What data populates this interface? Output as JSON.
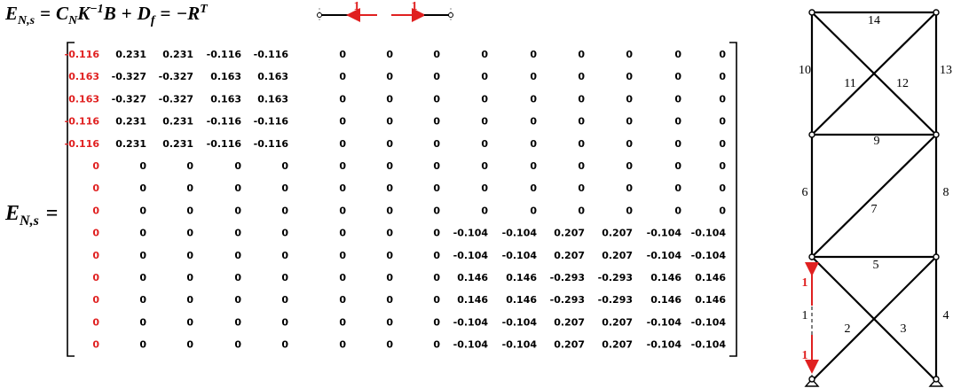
{
  "equation": {
    "lhs": "E",
    "lhs_sub": "N,s",
    "eq1": "=",
    "c": "C",
    "c_sub": "N",
    "k": "K",
    "k_sup": "−1",
    "b": "B",
    "plus": "+",
    "d": "D",
    "d_sub": "f",
    "eq2": "=",
    "r": "−R",
    "r_sup": "T"
  },
  "bar_diagram": {
    "labels": [
      "1",
      "1"
    ]
  },
  "matrix_label": {
    "main": "E",
    "sub": "N,s",
    "eq": "="
  },
  "matrix": {
    "rows": [
      [
        "-0.116",
        "0.231",
        "0.231",
        "-0.116",
        "-0.116",
        "0",
        "0",
        "0",
        "0",
        "0",
        "0",
        "0",
        "0",
        "0"
      ],
      [
        "0.163",
        "-0.327",
        "-0.327",
        "0.163",
        "0.163",
        "0",
        "0",
        "0",
        "0",
        "0",
        "0",
        "0",
        "0",
        "0"
      ],
      [
        "0.163",
        "-0.327",
        "-0.327",
        "0.163",
        "0.163",
        "0",
        "0",
        "0",
        "0",
        "0",
        "0",
        "0",
        "0",
        "0"
      ],
      [
        "-0.116",
        "0.231",
        "0.231",
        "-0.116",
        "-0.116",
        "0",
        "0",
        "0",
        "0",
        "0",
        "0",
        "0",
        "0",
        "0"
      ],
      [
        "-0.116",
        "0.231",
        "0.231",
        "-0.116",
        "-0.116",
        "0",
        "0",
        "0",
        "0",
        "0",
        "0",
        "0",
        "0",
        "0"
      ],
      [
        "0",
        "0",
        "0",
        "0",
        "0",
        "0",
        "0",
        "0",
        "0",
        "0",
        "0",
        "0",
        "0",
        "0"
      ],
      [
        "0",
        "0",
        "0",
        "0",
        "0",
        "0",
        "0",
        "0",
        "0",
        "0",
        "0",
        "0",
        "0",
        "0"
      ],
      [
        "0",
        "0",
        "0",
        "0",
        "0",
        "0",
        "0",
        "0",
        "0",
        "0",
        "0",
        "0",
        "0",
        "0"
      ],
      [
        "0",
        "0",
        "0",
        "0",
        "0",
        "0",
        "0",
        "0",
        "-0.104",
        "-0.104",
        "0.207",
        "0.207",
        "-0.104",
        "-0.104"
      ],
      [
        "0",
        "0",
        "0",
        "0",
        "0",
        "0",
        "0",
        "0",
        "-0.104",
        "-0.104",
        "0.207",
        "0.207",
        "-0.104",
        "-0.104"
      ],
      [
        "0",
        "0",
        "0",
        "0",
        "0",
        "0",
        "0",
        "0",
        "0.146",
        "0.146",
        "-0.293",
        "-0.293",
        "0.146",
        "0.146"
      ],
      [
        "0",
        "0",
        "0",
        "0",
        "0",
        "0",
        "0",
        "0",
        "0.146",
        "0.146",
        "-0.293",
        "-0.293",
        "0.146",
        "0.146"
      ],
      [
        "0",
        "0",
        "0",
        "0",
        "0",
        "0",
        "0",
        "0",
        "-0.104",
        "-0.104",
        "0.207",
        "0.207",
        "-0.104",
        "-0.104"
      ],
      [
        "0",
        "0",
        "0",
        "0",
        "0",
        "0",
        "0",
        "0",
        "-0.104",
        "-0.104",
        "0.207",
        "0.207",
        "-0.104",
        "-0.104"
      ]
    ]
  },
  "truss": {
    "members": [
      "1",
      "2",
      "3",
      "4",
      "5",
      "6",
      "7",
      "8",
      "9",
      "10",
      "11",
      "12",
      "13",
      "14"
    ],
    "force_labels": [
      "1",
      "1"
    ]
  }
}
